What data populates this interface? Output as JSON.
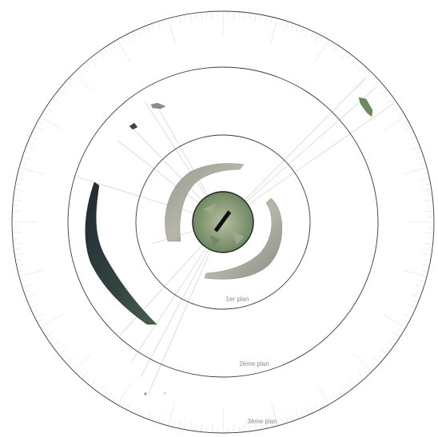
{
  "labels": {
    "plan1": "1er plan",
    "plan2": "2ème plan",
    "plan3": "3ème plan"
  },
  "colors": {
    "ring": "#3a3a3a",
    "sightline": "#c8c8c8",
    "tick": "#d0d0d0",
    "label": "#8a8a8a",
    "terrain_dark": "#27343a",
    "terrain_green": "#7f9a6c",
    "terrain_grey": "#a8a8a0"
  }
}
